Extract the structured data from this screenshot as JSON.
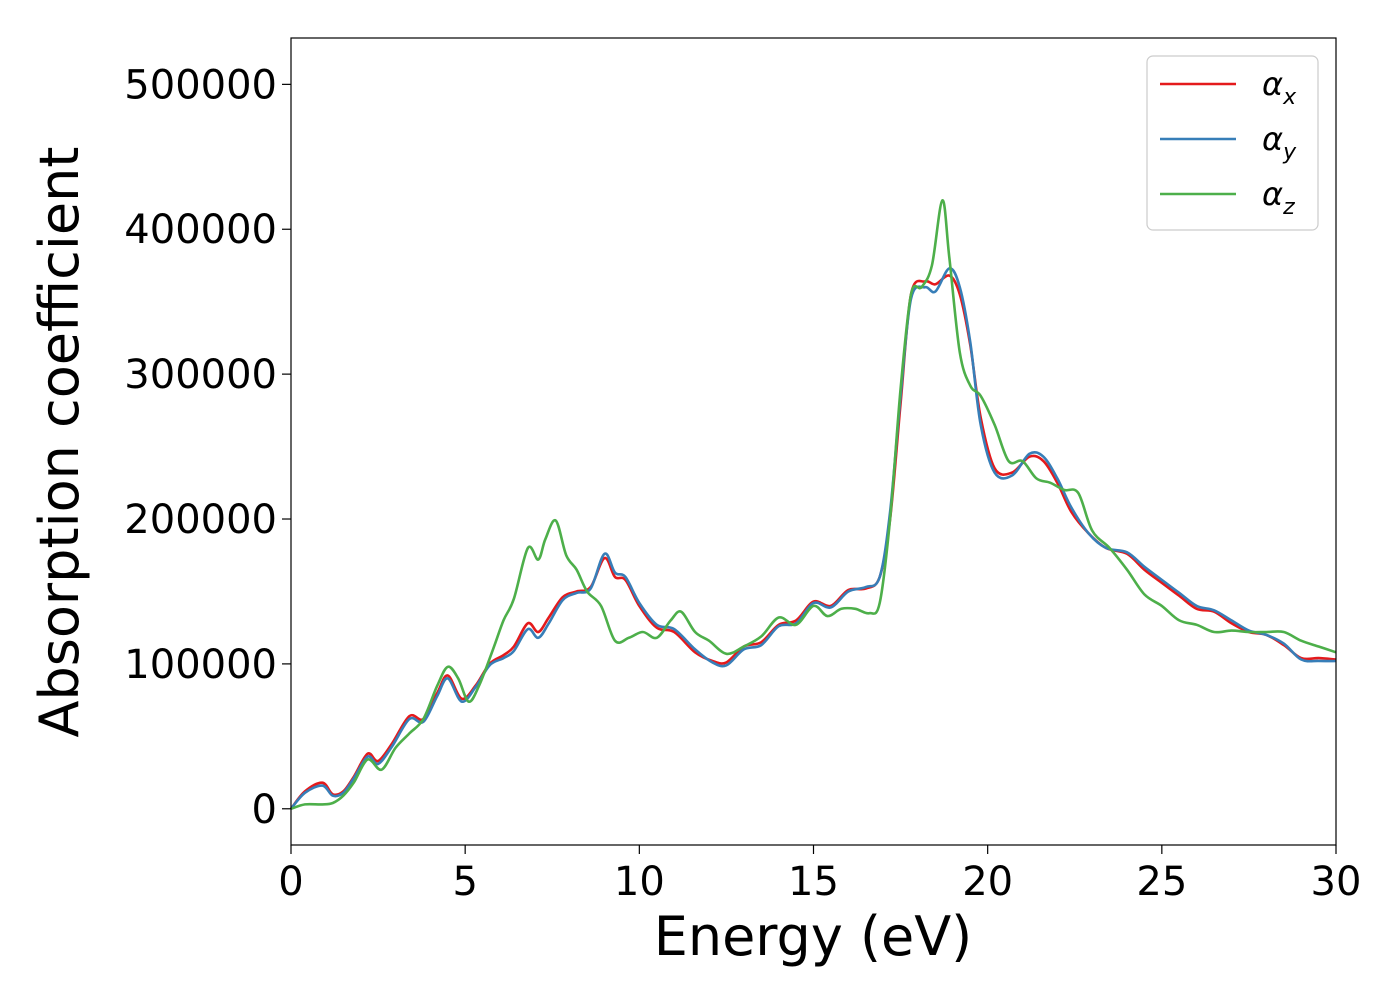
{
  "chart_data": {
    "type": "line",
    "xlabel": "Energy (eV)",
    "ylabel": "Absorption coefficient",
    "xlim": [
      0,
      30
    ],
    "ylim": [
      -25000,
      532000
    ],
    "xticks": [
      "0",
      "5",
      "10",
      "15",
      "20",
      "25",
      "30"
    ],
    "yticks": [
      "0",
      "100000",
      "200000",
      "300000",
      "400000",
      "500000"
    ],
    "grid": false,
    "legend_position": "top-right",
    "series": [
      {
        "name": "α",
        "subscript": "x",
        "color": "#e41a1c",
        "x": [
          0,
          0.4,
          0.9,
          1.2,
          1.5,
          1.8,
          2.2,
          2.5,
          2.9,
          3.4,
          3.8,
          4.2,
          4.5,
          4.9,
          5.3,
          5.7,
          6.1,
          6.4,
          6.8,
          7.1,
          7.4,
          7.8,
          8.2,
          8.6,
          9.0,
          9.3,
          9.6,
          10.0,
          10.5,
          11.0,
          11.6,
          12.1,
          12.5,
          13.0,
          13.5,
          14.0,
          14.5,
          15.0,
          15.5,
          16.0,
          16.5,
          16.9,
          17.2,
          17.5,
          17.8,
          18.2,
          18.5,
          18.9,
          19.2,
          19.5,
          19.8,
          20.2,
          20.7,
          21.2,
          21.6,
          22.0,
          22.4,
          22.9,
          23.4,
          24.0,
          24.5,
          25.0,
          25.5,
          26.0,
          26.5,
          27.0,
          27.5,
          28.0,
          28.5,
          29.0,
          29.5,
          30.0
        ],
        "y": [
          0,
          12000,
          18000,
          10000,
          12000,
          22000,
          38000,
          33000,
          45000,
          64000,
          62000,
          80000,
          92000,
          76000,
          85000,
          100000,
          106000,
          112000,
          128000,
          122000,
          132000,
          146000,
          150000,
          153000,
          173000,
          160000,
          158000,
          140000,
          125000,
          122000,
          108000,
          102000,
          101000,
          112000,
          115000,
          127000,
          130000,
          143000,
          140000,
          151000,
          152000,
          160000,
          200000,
          280000,
          355000,
          364000,
          362000,
          368000,
          355000,
          320000,
          270000,
          235000,
          232000,
          243000,
          240000,
          225000,
          205000,
          190000,
          180000,
          176000,
          165000,
          156000,
          147000,
          138000,
          136000,
          128000,
          122000,
          120000,
          113000,
          104000,
          104000,
          103000
        ]
      },
      {
        "name": "α",
        "subscript": "y",
        "color": "#377eb8",
        "x": [
          0,
          0.4,
          0.9,
          1.2,
          1.5,
          1.8,
          2.2,
          2.5,
          2.9,
          3.4,
          3.8,
          4.2,
          4.5,
          4.9,
          5.3,
          5.7,
          6.1,
          6.4,
          6.8,
          7.1,
          7.4,
          7.8,
          8.2,
          8.6,
          9.0,
          9.3,
          9.6,
          10.0,
          10.5,
          11.0,
          11.6,
          12.1,
          12.5,
          13.0,
          13.5,
          14.0,
          14.5,
          15.0,
          15.5,
          16.0,
          16.5,
          16.9,
          17.2,
          17.5,
          17.8,
          18.2,
          18.5,
          18.9,
          19.2,
          19.5,
          19.8,
          20.2,
          20.7,
          21.2,
          21.6,
          22.0,
          22.4,
          22.9,
          23.4,
          24.0,
          24.5,
          25.0,
          25.5,
          26.0,
          26.5,
          27.0,
          27.5,
          28.0,
          28.5,
          29.0,
          29.5,
          30.0
        ],
        "y": [
          0,
          11000,
          16000,
          9000,
          11000,
          21000,
          36000,
          31000,
          43000,
          62000,
          60000,
          78000,
          90000,
          74000,
          84000,
          99000,
          104000,
          109000,
          124000,
          118000,
          128000,
          144000,
          149000,
          152000,
          176000,
          163000,
          160000,
          142000,
          127000,
          124000,
          110000,
          101000,
          99000,
          110000,
          113000,
          126000,
          128000,
          142000,
          139000,
          150000,
          153000,
          160000,
          205000,
          285000,
          352000,
          360000,
          357000,
          373000,
          360000,
          322000,
          265000,
          232000,
          230000,
          245000,
          243000,
          228000,
          208000,
          190000,
          180000,
          177000,
          167000,
          158000,
          149000,
          140000,
          137000,
          130000,
          123000,
          120000,
          114000,
          103000,
          102000,
          102000
        ]
      },
      {
        "name": "α",
        "subscript": "z",
        "color": "#4daf4a",
        "x": [
          0,
          0.4,
          0.9,
          1.2,
          1.5,
          1.8,
          2.2,
          2.6,
          3.0,
          3.4,
          3.8,
          4.2,
          4.5,
          4.8,
          5.1,
          5.4,
          5.8,
          6.1,
          6.4,
          6.8,
          7.1,
          7.3,
          7.6,
          7.9,
          8.2,
          8.5,
          8.9,
          9.3,
          9.7,
          10.1,
          10.5,
          10.9,
          11.2,
          11.6,
          12.0,
          12.5,
          13.0,
          13.5,
          14.0,
          14.5,
          15.0,
          15.4,
          15.8,
          16.2,
          16.6,
          16.9,
          17.2,
          17.5,
          17.8,
          18.1,
          18.4,
          18.7,
          18.9,
          19.2,
          19.5,
          19.8,
          20.2,
          20.6,
          21.0,
          21.4,
          21.8,
          22.2,
          22.6,
          23.0,
          23.5,
          24.0,
          24.5,
          25.0,
          25.5,
          26.0,
          26.5,
          27.0,
          27.5,
          28.0,
          28.5,
          29.0,
          29.5,
          30.0
        ],
        "y": [
          0,
          3000,
          3000,
          4000,
          9000,
          18000,
          34000,
          27000,
          42000,
          52000,
          62000,
          85000,
          98000,
          90000,
          74000,
          85000,
          110000,
          130000,
          145000,
          180000,
          172000,
          186000,
          199000,
          175000,
          165000,
          150000,
          140000,
          116000,
          118000,
          122000,
          118000,
          130000,
          136000,
          122000,
          116000,
          107000,
          112000,
          119000,
          132000,
          127000,
          140000,
          133000,
          138000,
          138000,
          135000,
          142000,
          200000,
          290000,
          355000,
          360000,
          375000,
          420000,
          380000,
          315000,
          292000,
          285000,
          265000,
          240000,
          240000,
          228000,
          225000,
          220000,
          218000,
          192000,
          180000,
          165000,
          148000,
          140000,
          130000,
          127000,
          122000,
          123000,
          122000,
          122000,
          122000,
          116000,
          112000,
          108000
        ]
      }
    ]
  }
}
